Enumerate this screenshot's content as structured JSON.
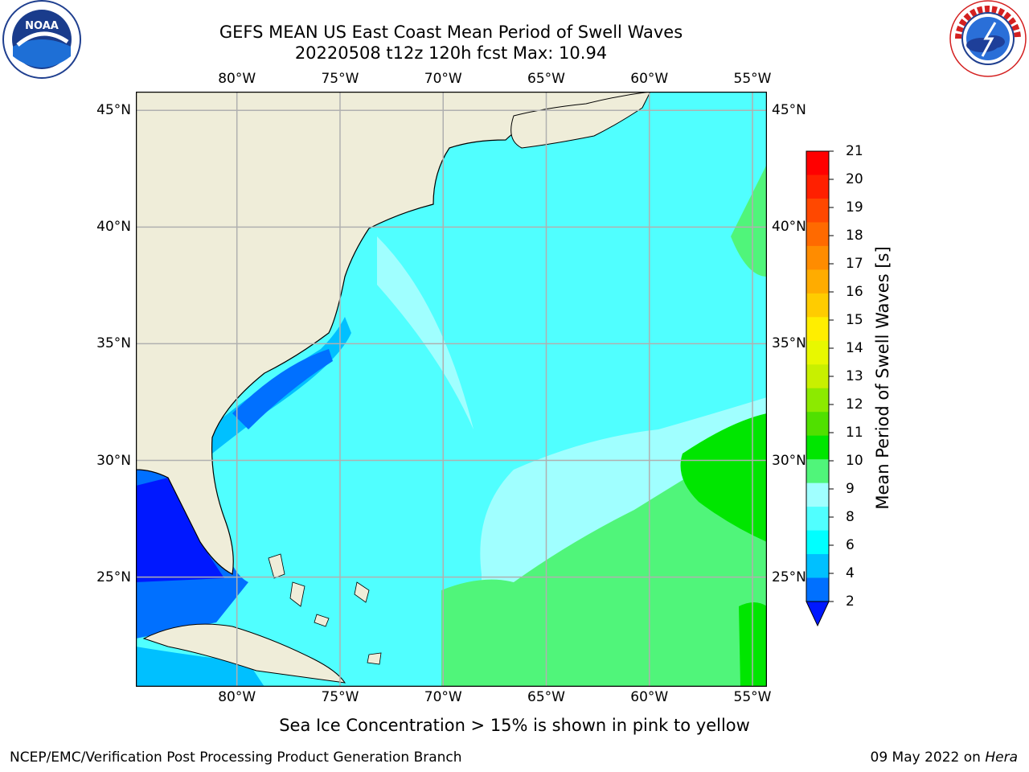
{
  "header": {
    "title_line1": "GEFS MEAN US East Coast Mean Period of Swell Waves",
    "title_line2": "20220508 t12z 120h fcst   Max: 10.94"
  },
  "logos": {
    "left": {
      "name": "noaa-logo",
      "text": "NOAA",
      "ring_text": "NATIONAL OCEANIC AND ATMOSPHERIC ADMINISTRATION · U.S. DEPARTMENT OF COMMERCE"
    },
    "right": {
      "name": "nws-logo",
      "ring_text": "NATIONAL WEATHER SERVICE"
    }
  },
  "map": {
    "lon_labels": [
      "80°W",
      "75°W",
      "70°W",
      "65°W",
      "60°W",
      "55°W"
    ],
    "lat_labels": [
      "45°N",
      "40°N",
      "35°N",
      "30°N",
      "25°N"
    ],
    "lon_values": [
      -80,
      -75,
      -70,
      -65,
      -60,
      -55
    ],
    "lat_values": [
      45,
      40,
      35,
      30,
      25
    ],
    "extent": {
      "lon_min": -84.9,
      "lon_max": -54.3,
      "lat_min": 20.3,
      "lat_max": 45.8
    },
    "colors": {
      "land": "#efedd9",
      "grid": "#b0b0b0"
    }
  },
  "colorbar": {
    "label": "Mean Period of Swell Waves [s]",
    "ticks": [
      "21",
      "20",
      "19",
      "18",
      "17",
      "16",
      "15",
      "14",
      "13",
      "12",
      "11",
      "10",
      "9",
      "8",
      "6",
      "4",
      "2"
    ],
    "colors": [
      "#ff0000",
      "#ff2000",
      "#ff4800",
      "#ff6a00",
      "#ff8c00",
      "#ffac00",
      "#ffcc00",
      "#ffee00",
      "#e8f800",
      "#c8f000",
      "#8cea00",
      "#50e000",
      "#00e600",
      "#50f57a",
      "#a0ffff",
      "#50ffff",
      "#00ffff",
      "#00c0ff",
      "#0070ff"
    ],
    "extend_color": "#0018ff"
  },
  "footer": {
    "note": "Sea Ice Concentration > 15% is shown in pink to yellow",
    "left": "NCEP/EMC/Verification Post Processing Product Generation Branch",
    "right_date": "09 May 2022 on",
    "right_host": "Hera"
  }
}
